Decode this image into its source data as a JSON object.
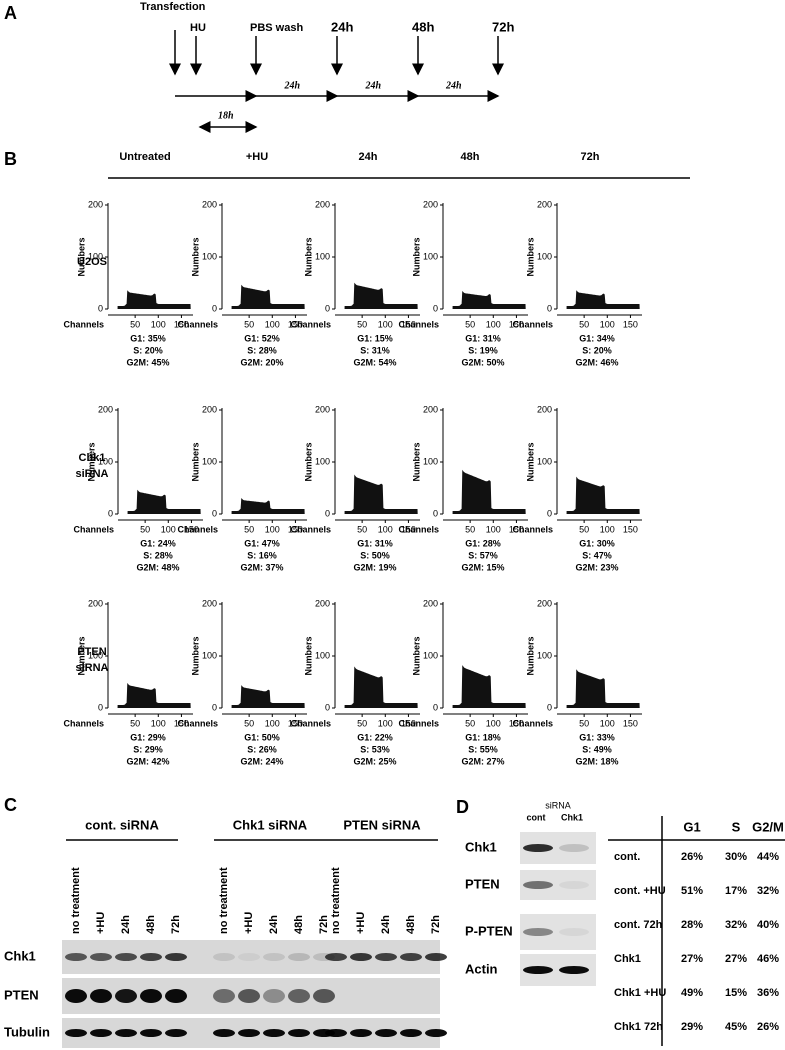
{
  "panelA": {
    "label": "A",
    "events": [
      "Transfection",
      "HU",
      "PBS wash",
      "24h",
      "48h",
      "72h"
    ],
    "intervals": [
      "24h",
      "24h",
      "24h"
    ],
    "hu_duration": "18h"
  },
  "panelB": {
    "label": "B",
    "columns": [
      "Untreated",
      "+HU",
      "24h",
      "48h",
      "72h"
    ],
    "axis": {
      "y_title": "Numbers",
      "x_title": "Channels",
      "yticks": [
        "0",
        "100",
        "200"
      ],
      "xticks": [
        "50",
        "100",
        "150"
      ]
    },
    "rows": [
      {
        "label_lines": [
          "U2OS"
        ],
        "cells": [
          {
            "g1": "G1: 35%",
            "s": "S: 20%",
            "g2m": "G2M: 45%"
          },
          {
            "g1": "G1: 52%",
            "s": "S: 28%",
            "g2m": "G2M: 20%"
          },
          {
            "g1": "G1: 15%",
            "s": "S: 31%",
            "g2m": "G2M: 54%"
          },
          {
            "g1": "G1: 31%",
            "s": "S: 19%",
            "g2m": "G2M: 50%"
          },
          {
            "g1": "G1: 34%",
            "s": "S: 20%",
            "g2m": "G2M: 46%"
          }
        ]
      },
      {
        "label_lines": [
          "Chk1",
          "siRNA"
        ],
        "cells": [
          {
            "g1": "G1: 24%",
            "s": "S: 28%",
            "g2m": "G2M: 48%"
          },
          {
            "g1": "G1: 47%",
            "s": "S: 16%",
            "g2m": "G2M: 37%"
          },
          {
            "g1": "G1: 31%",
            "s": "S: 50%",
            "g2m": "G2M: 19%"
          },
          {
            "g1": "G1: 28%",
            "s": "S: 57%",
            "g2m": "G2M: 15%"
          },
          {
            "g1": "G1: 30%",
            "s": "S: 47%",
            "g2m": "G2M: 23%"
          }
        ]
      },
      {
        "label_lines": [
          "PTEN",
          "siRNA"
        ],
        "cells": [
          {
            "g1": "G1: 29%",
            "s": "S: 29%",
            "g2m": "G2M: 42%"
          },
          {
            "g1": "G1: 50%",
            "s": "S: 26%",
            "g2m": "G2M: 24%"
          },
          {
            "g1": "G1: 22%",
            "s": "S: 53%",
            "g2m": "G2M: 25%"
          },
          {
            "g1": "G1: 18%",
            "s": "S: 55%",
            "g2m": "G2M: 27%"
          },
          {
            "g1": "G1: 33%",
            "s": "S: 49%",
            "g2m": "G2M: 18%"
          }
        ]
      }
    ]
  },
  "panelC": {
    "label": "C",
    "groups": [
      {
        "name": "cont. siRNA",
        "lanes": [
          "no treatment",
          "+HU",
          "24h",
          "48h",
          "72h"
        ]
      },
      {
        "name": "Chk1 siRNA",
        "lanes": [
          "no treatment",
          "+HU",
          "24h",
          "48h",
          "72h"
        ]
      },
      {
        "name": "PTEN siRNA",
        "lanes": [
          "no treatment",
          "+HU",
          "24h",
          "48h",
          "72h"
        ]
      }
    ],
    "blots": [
      "Chk1",
      "PTEN",
      "Tubulin"
    ]
  },
  "panelD": {
    "label": "D",
    "siRNA_header": "siRNA",
    "lanes": [
      "cont",
      "Chk1"
    ],
    "blots": [
      "Chk1",
      "PTEN",
      "P-PTEN",
      "Actin"
    ],
    "table": {
      "header": [
        "G1",
        "S",
        "G2/M"
      ],
      "rows": [
        [
          "cont.",
          "26%",
          "30%",
          "44%"
        ],
        [
          "cont. +HU",
          "51%",
          "17%",
          "32%"
        ],
        [
          "cont. 72h",
          "28%",
          "32%",
          "40%"
        ],
        [
          "Chk1",
          "27%",
          "27%",
          "46%"
        ],
        [
          "Chk1 +HU",
          "49%",
          "15%",
          "36%"
        ],
        [
          "Chk1 72h",
          "29%",
          "45%",
          "26%"
        ]
      ]
    }
  }
}
